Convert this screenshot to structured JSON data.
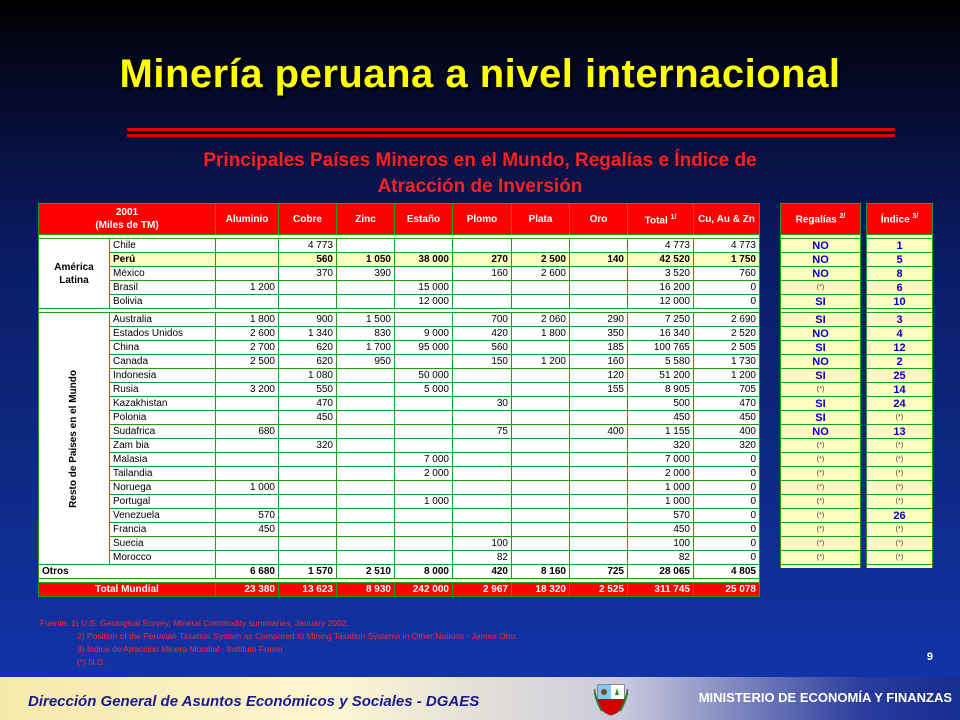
{
  "title": "Minería peruana a nivel internacional",
  "subtitle_line1": "Principales Países Mineros en el Mundo, Regalías e Índice de",
  "subtitle_line2": "Atracción de Inversión",
  "table": {
    "header_year": "2001",
    "header_units": "(Miles de TM)",
    "columns": [
      "Aluminio",
      "Cobre",
      "Zinc",
      "Estaño",
      "Plomo",
      "Plata",
      "Oro",
      "Total",
      "Cu, Au & Zn"
    ],
    "total_sup": "1/",
    "regalias_label": "Regalías",
    "regalias_sup": "2/",
    "indice_label": "Índice",
    "indice_sup": "3/",
    "region_latam": "América Latina",
    "region_rest": "Resto de Países en el Mundo",
    "latam": [
      {
        "country": "Chile",
        "v": [
          "",
          "4 773",
          "",
          "",
          "",
          "",
          "",
          "4 773",
          "4 773"
        ],
        "reg": "NO",
        "idx": "1"
      },
      {
        "country": "Perú",
        "v": [
          "",
          "560",
          "1 050",
          "38 000",
          "270",
          "2 500",
          "140",
          "42 520",
          "1 750"
        ],
        "reg": "NO",
        "idx": "5"
      },
      {
        "country": "México",
        "v": [
          "",
          "370",
          "390",
          "",
          "160",
          "2 600",
          "",
          "3 520",
          "760"
        ],
        "reg": "NO",
        "idx": "8"
      },
      {
        "country": "Brasil",
        "v": [
          "1 200",
          "",
          "",
          "15 000",
          "",
          "",
          "",
          "16 200",
          "0"
        ],
        "reg": "(*)",
        "idx": "6"
      },
      {
        "country": "Bolivia",
        "v": [
          "",
          "",
          "",
          "12 000",
          "",
          "",
          "",
          "12 000",
          "0"
        ],
        "reg": "SI",
        "idx": "10"
      }
    ],
    "rest": [
      {
        "country": "Australia",
        "v": [
          "1 800",
          "900",
          "1 500",
          "",
          "700",
          "2 060",
          "290",
          "7 250",
          "2 690"
        ],
        "reg": "SI",
        "idx": "3"
      },
      {
        "country": "Estados Unidos",
        "v": [
          "2 600",
          "1 340",
          "830",
          "9 000",
          "420",
          "1 800",
          "350",
          "16 340",
          "2 520"
        ],
        "reg": "NO",
        "idx": "4"
      },
      {
        "country": "China",
        "v": [
          "2 700",
          "620",
          "1 700",
          "95 000",
          "560",
          "",
          "185",
          "100 765",
          "2 505"
        ],
        "reg": "SI",
        "idx": "12"
      },
      {
        "country": "Canada",
        "v": [
          "2 500",
          "620",
          "950",
          "",
          "150",
          "1 200",
          "160",
          "5 580",
          "1 730"
        ],
        "reg": "NO",
        "idx": "2"
      },
      {
        "country": "Indonesia",
        "v": [
          "",
          "1 080",
          "",
          "50 000",
          "",
          "",
          "120",
          "51 200",
          "1 200"
        ],
        "reg": "SI",
        "idx": "25"
      },
      {
        "country": "Rusia",
        "v": [
          "3 200",
          "550",
          "",
          "5 000",
          "",
          "",
          "155",
          "8 905",
          "705"
        ],
        "reg": "(*)",
        "idx": "14"
      },
      {
        "country": "Kazakhistan",
        "v": [
          "",
          "470",
          "",
          "",
          "30",
          "",
          "",
          "500",
          "470"
        ],
        "reg": "SI",
        "idx": "24"
      },
      {
        "country": "Polonia",
        "v": [
          "",
          "450",
          "",
          "",
          "",
          "",
          "",
          "450",
          "450"
        ],
        "reg": "SI",
        "idx": "(*)"
      },
      {
        "country": "Sudafrica",
        "v": [
          "680",
          "",
          "",
          "",
          "75",
          "",
          "400",
          "1 155",
          "400"
        ],
        "reg": "NO",
        "idx": "13"
      },
      {
        "country": "Zam bia",
        "v": [
          "",
          "320",
          "",
          "",
          "",
          "",
          "",
          "320",
          "320"
        ],
        "reg": "(*)",
        "idx": "(*)"
      },
      {
        "country": "Malasia",
        "v": [
          "",
          "",
          "",
          "7 000",
          "",
          "",
          "",
          "7 000",
          "0"
        ],
        "reg": "(*)",
        "idx": "(*)"
      },
      {
        "country": "Tailandia",
        "v": [
          "",
          "",
          "",
          "2 000",
          "",
          "",
          "",
          "2 000",
          "0"
        ],
        "reg": "(*)",
        "idx": "(*)"
      },
      {
        "country": "Noruega",
        "v": [
          "1 000",
          "",
          "",
          "",
          "",
          "",
          "",
          "1 000",
          "0"
        ],
        "reg": "(*)",
        "idx": "(*)"
      },
      {
        "country": "Portugal",
        "v": [
          "",
          "",
          "",
          "1 000",
          "",
          "",
          "",
          "1 000",
          "0"
        ],
        "reg": "(*)",
        "idx": "(*)"
      },
      {
        "country": "Venezuela",
        "v": [
          "570",
          "",
          "",
          "",
          "",
          "",
          "",
          "570",
          "0"
        ],
        "reg": "(*)",
        "idx": "26"
      },
      {
        "country": "Francia",
        "v": [
          "450",
          "",
          "",
          "",
          "",
          "",
          "",
          "450",
          "0"
        ],
        "reg": "(*)",
        "idx": "(*)"
      },
      {
        "country": "Suecia",
        "v": [
          "",
          "",
          "",
          "",
          "100",
          "",
          "",
          "100",
          "0"
        ],
        "reg": "(*)",
        "idx": "(*)"
      },
      {
        "country": "Morocco",
        "v": [
          "",
          "",
          "",
          "",
          "82",
          "",
          "",
          "82",
          "0"
        ],
        "reg": "(*)",
        "idx": "(*)"
      }
    ],
    "otros": {
      "label": "Otros",
      "v": [
        "6 680",
        "1 570",
        "2 510",
        "8 000",
        "420",
        "8 160",
        "725",
        "28 065",
        "4 805"
      ]
    },
    "total": {
      "label": "Total Mundial",
      "v": [
        "23 380",
        "13 623",
        "8 930",
        "242 000",
        "2 967",
        "18 320",
        "2 525",
        "311 745",
        "25 078"
      ]
    }
  },
  "notes": [
    "Fuente: 1)   U.S. Geological Survey, Mineral Commodity summaries, January 2002.",
    "2)   Position of the Peruvian Taxation System as Compared to Mining Taxation Systems in Other Nations - James Otto.",
    "3)   Índice de Atracción Minera Mundial  - Instituto Fraser",
    "(*)   N.D."
  ],
  "page_number": "9",
  "footer_left": "Dirección General de Asuntos Económicos y Sociales - DGAES",
  "footer_right": "MINISTERIO DE ECONOMÍA Y FINANZAS",
  "colors": {
    "title": "#ffff00",
    "accent_red": "#ff0000",
    "highlight_yellow": "#fffcc0",
    "grid_green": "#1aa01a"
  }
}
